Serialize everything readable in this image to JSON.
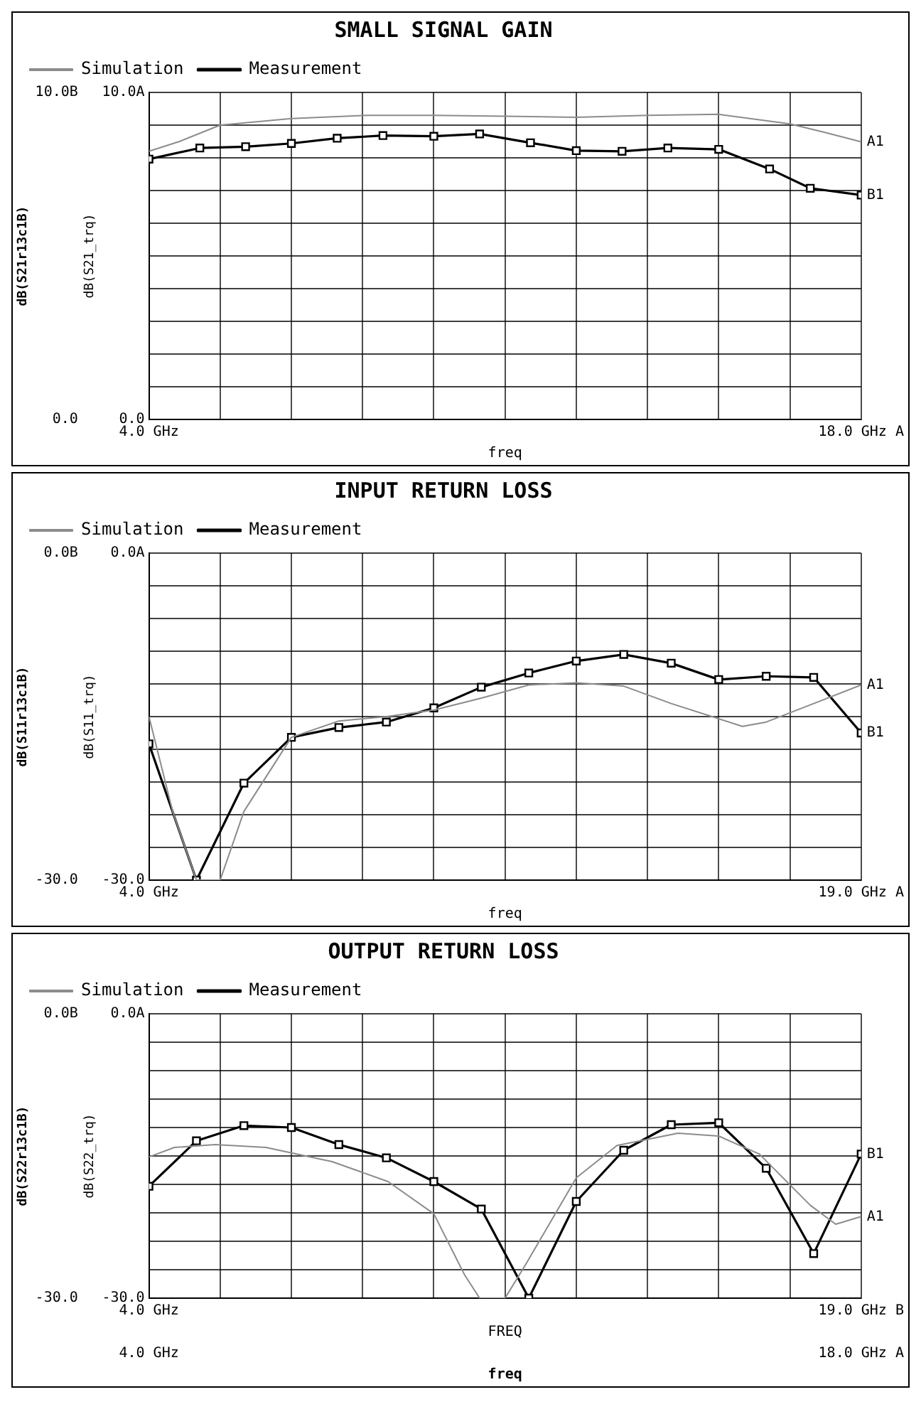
{
  "chart_data": [
    {
      "type": "line",
      "title": "SMALL SIGNAL GAIN",
      "xlabel": "freq",
      "ylabel": "dB(S21_trq)",
      "y2label": "dB(S21r13c1B)",
      "xlim": [
        4,
        18
      ],
      "xticks": [
        {
          "value": 4,
          "label": "4.0 GHz"
        },
        {
          "value": 5.4,
          "label": null
        },
        {
          "value": 6.8,
          "label": null
        },
        {
          "value": 8.2,
          "label": null
        },
        {
          "value": 9.6,
          "label": null
        },
        {
          "value": 11,
          "label": null
        },
        {
          "value": 12.4,
          "label": null
        },
        {
          "value": 13.8,
          "label": null
        },
        {
          "value": 15.2,
          "label": null
        },
        {
          "value": 16.6,
          "label": null
        },
        {
          "value": 18,
          "label": "18.0 GHz A"
        }
      ],
      "ylim": [
        0,
        10
      ],
      "yticks": [
        {
          "value": 0,
          "label": "0.0"
        },
        {
          "value": 1,
          "label": null
        },
        {
          "value": 2,
          "label": null
        },
        {
          "value": 3,
          "label": null
        },
        {
          "value": 4,
          "label": null
        },
        {
          "value": 5,
          "label": null
        },
        {
          "value": 6,
          "label": null
        },
        {
          "value": 7,
          "label": null
        },
        {
          "value": 8,
          "label": null
        },
        {
          "value": 9,
          "label": null
        },
        {
          "value": 10,
          "label": "10.0A"
        }
      ],
      "y2lim": [
        0,
        10
      ],
      "y2ticks": [
        {
          "value": 0,
          "label": "0.0"
        },
        {
          "value": 10,
          "label": "10.0B"
        }
      ],
      "grid": true,
      "legend": "top left",
      "line_style": "solid",
      "series": [
        {
          "name": "Simulation",
          "color": "#8c8c8c",
          "marker": "none",
          "x": [
            4,
            4.6,
            5.4,
            6.8,
            8.3,
            9.6,
            11,
            12.4,
            13.8,
            15.2,
            16.6,
            17.3,
            18
          ],
          "values": [
            8.2,
            8.5,
            9.0,
            9.2,
            9.3,
            9.3,
            9.27,
            9.24,
            9.3,
            9.33,
            9.04,
            8.77,
            8.49
          ]
        },
        {
          "name": "Measurement",
          "color": "#000000",
          "marker": "square",
          "axis": "y2",
          "x": [
            4,
            5.0,
            5.9,
            6.8,
            7.7,
            8.6,
            9.6,
            10.5,
            11.5,
            12.4,
            13.3,
            14.2,
            15.2,
            16.2,
            17.0,
            18
          ],
          "values": [
            7.96,
            8.3,
            8.34,
            8.44,
            8.6,
            8.68,
            8.66,
            8.73,
            8.46,
            8.22,
            8.2,
            8.3,
            8.26,
            7.66,
            7.07,
            6.86
          ]
        }
      ],
      "annotations": [
        "A1",
        "B1"
      ]
    },
    {
      "type": "line",
      "title": "INPUT RETURN LOSS",
      "xlabel": "freq",
      "ylabel": "dB(S11_trq)",
      "y2label": "dB(S11r13c1B)",
      "xlim": [
        4,
        19
      ],
      "xticks": [
        {
          "value": 4,
          "label": "4.0 GHz"
        },
        {
          "value": 5.5,
          "label": null
        },
        {
          "value": 7,
          "label": null
        },
        {
          "value": 8.5,
          "label": null
        },
        {
          "value": 10,
          "label": null
        },
        {
          "value": 11.5,
          "label": null
        },
        {
          "value": 13,
          "label": null
        },
        {
          "value": 14.5,
          "label": null
        },
        {
          "value": 16,
          "label": null
        },
        {
          "value": 17.5,
          "label": null
        },
        {
          "value": 19,
          "label": "19.0 GHz A"
        }
      ],
      "ylim": [
        -30,
        0
      ],
      "yticks": [
        {
          "value": -30,
          "label": "-30.0"
        },
        {
          "value": -27,
          "label": null
        },
        {
          "value": -24,
          "label": null
        },
        {
          "value": -21,
          "label": null
        },
        {
          "value": -18,
          "label": null
        },
        {
          "value": -15,
          "label": null
        },
        {
          "value": -12,
          "label": null
        },
        {
          "value": -9,
          "label": null
        },
        {
          "value": -6,
          "label": null
        },
        {
          "value": -3,
          "label": null
        },
        {
          "value": 0,
          "label": "0.0A"
        }
      ],
      "y2lim": [
        -30,
        0
      ],
      "y2ticks": [
        {
          "value": -30,
          "label": "-30.0"
        },
        {
          "value": 0,
          "label": "0.0B"
        }
      ],
      "grid": true,
      "legend": "top left",
      "line_style": "solid",
      "series": [
        {
          "name": "Simulation",
          "color": "#8c8c8c",
          "marker": "none",
          "x": [
            4,
            4.5,
            5.0,
            5.5,
            6.0,
            7.0,
            8.0,
            9.0,
            10.0,
            11.0,
            12.0,
            13.0,
            14.0,
            15.0,
            16.0,
            16.5,
            17.0,
            18.0,
            19.0
          ],
          "values": [
            -15.0,
            -23.7,
            -30,
            -30,
            -23.7,
            -16.9,
            -15.4,
            -15.0,
            -14.4,
            -13.3,
            -12.1,
            -11.9,
            -12.2,
            -13.8,
            -15.2,
            -15.9,
            -15.5,
            -13.8,
            -12.1
          ]
        },
        {
          "name": "Measurement",
          "color": "#000000",
          "marker": "square",
          "axis": "y2",
          "x": [
            4,
            5.0,
            6.0,
            7.0,
            8.0,
            9.0,
            10.0,
            11.0,
            12.0,
            13.0,
            14.0,
            15.0,
            16.0,
            17.0,
            18.0,
            19.0
          ],
          "values": [
            -17.5,
            -30,
            -21.1,
            -16.9,
            -16.0,
            -15.5,
            -14.2,
            -12.3,
            -11.0,
            -9.9,
            -9.3,
            -10.1,
            -11.6,
            -11.3,
            -11.4,
            -16.5
          ]
        }
      ],
      "annotations": [
        "A1",
        "B1"
      ]
    },
    {
      "type": "line",
      "title": "OUTPUT RETURN LOSS",
      "xlabel": "FREQ",
      "x2label": "freq",
      "ylabel": "dB(S22_trq)",
      "y2label": "dB(S22r13c1B)",
      "xlim": [
        4,
        19
      ],
      "xticks": [
        {
          "value": 4,
          "label": "4.0 GHz"
        },
        {
          "value": 5.5,
          "label": null
        },
        {
          "value": 7,
          "label": null
        },
        {
          "value": 8.5,
          "label": null
        },
        {
          "value": 10,
          "label": null
        },
        {
          "value": 11.5,
          "label": null
        },
        {
          "value": 13,
          "label": null
        },
        {
          "value": 14.5,
          "label": null
        },
        {
          "value": 16,
          "label": null
        },
        {
          "value": 17.5,
          "label": null
        },
        {
          "value": 19,
          "label": "19.0 GHz B"
        }
      ],
      "x2lim": [
        4,
        18
      ],
      "x2ticks": [
        {
          "value": 4,
          "label": "4.0 GHz"
        },
        {
          "value": 18,
          "label": "18.0 GHz A"
        }
      ],
      "ylim": [
        -30,
        0
      ],
      "yticks": [
        {
          "value": -30,
          "label": "-30.0"
        },
        {
          "value": -27,
          "label": null
        },
        {
          "value": -24,
          "label": null
        },
        {
          "value": -21,
          "label": null
        },
        {
          "value": -18,
          "label": null
        },
        {
          "value": -15,
          "label": null
        },
        {
          "value": -12,
          "label": null
        },
        {
          "value": -9,
          "label": null
        },
        {
          "value": -6,
          "label": null
        },
        {
          "value": -3,
          "label": null
        },
        {
          "value": 0,
          "label": "0.0A"
        }
      ],
      "y2lim": [
        -30,
        0
      ],
      "y2ticks": [
        {
          "value": -30,
          "label": "-30.0"
        },
        {
          "value": 0,
          "label": "0.0B"
        }
      ],
      "grid": true,
      "legend": "top left",
      "line_style": "solid",
      "series": [
        {
          "name": "Simulation",
          "color": "#8c8c8c",
          "marker": "none",
          "axis": "x2",
          "x": [
            4,
            4.5,
            5.3,
            6.3,
            7.6,
            8.7,
            9.6,
            10.2,
            10.5,
            11.0,
            11.4,
            12.4,
            13.2,
            14.4,
            15.2,
            16.0,
            17.0,
            17.5,
            18
          ],
          "values": [
            -15.1,
            -14.1,
            -13.8,
            -14.1,
            -15.6,
            -17.7,
            -21.1,
            -27.5,
            -30,
            -30,
            -26.5,
            -17.3,
            -13.9,
            -12.6,
            -12.9,
            -14.8,
            -20.2,
            -22.2,
            -21.4
          ]
        },
        {
          "name": "Measurement",
          "color": "#000000",
          "marker": "square",
          "axis": "y2",
          "x": [
            4,
            5.0,
            6.0,
            7.0,
            8.0,
            9.0,
            10.0,
            11.0,
            12.0,
            13.0,
            14.0,
            15.0,
            16.0,
            17.0,
            18.0,
            19.0
          ],
          "values": [
            -18.2,
            -13.4,
            -11.8,
            -12.0,
            -13.8,
            -15.2,
            -17.7,
            -20.6,
            -30,
            -19.8,
            -14.4,
            -11.7,
            -11.5,
            -16.3,
            -25.3,
            -14.8
          ]
        }
      ],
      "annotations": [
        "A1",
        "B1"
      ]
    }
  ]
}
